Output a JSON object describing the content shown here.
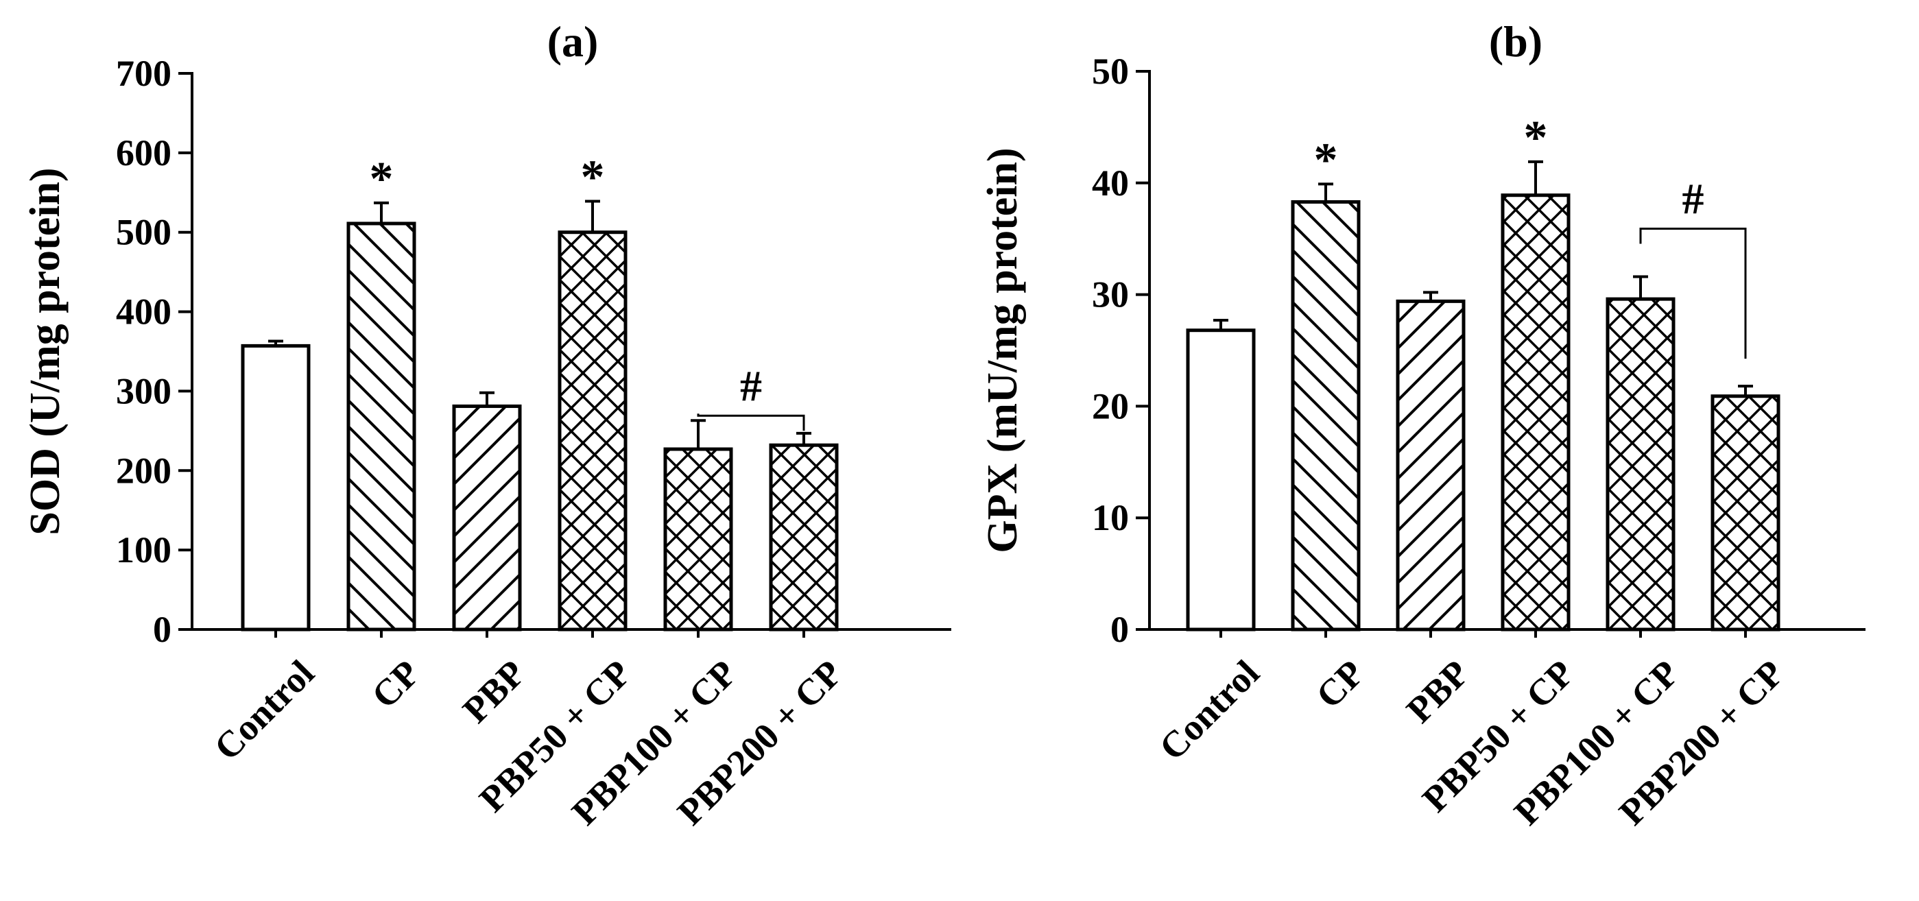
{
  "chart_data": [
    {
      "type": "bar",
      "title": "(a)",
      "xlabel": "",
      "ylabel": "SOD (U/mg protein)",
      "ylim": [
        0,
        700
      ],
      "yticks": [
        0,
        100,
        200,
        300,
        400,
        500,
        600,
        700
      ],
      "categories": [
        "Control",
        "CP",
        "PBP",
        "PBP50 + CP",
        "PBP100 + CP",
        "PBP200 + CP"
      ],
      "values": [
        357,
        511,
        281,
        500,
        227,
        232
      ],
      "errors": [
        6,
        26,
        17,
        39,
        36,
        15
      ],
      "patterns": [
        "none",
        "back",
        "forward",
        "cross",
        "cross",
        "cross"
      ],
      "markers": [
        "",
        "*",
        "",
        "*",
        "",
        ""
      ],
      "bracket": {
        "from": 4,
        "to": 5,
        "label": "#"
      }
    },
    {
      "type": "bar",
      "title": "(b)",
      "xlabel": "",
      "ylabel": "GPX (mU/mg protein)",
      "ylim": [
        0,
        50
      ],
      "yticks": [
        0,
        10,
        20,
        30,
        40,
        50
      ],
      "categories": [
        "Control",
        "CP",
        "PBP",
        "PBP50 + CP",
        "PBP100 + CP",
        "PBP200 + CP"
      ],
      "values": [
        26.8,
        38.3,
        29.4,
        38.9,
        29.6,
        20.9
      ],
      "errors": [
        0.9,
        1.6,
        0.8,
        3.0,
        2.0,
        0.9
      ],
      "patterns": [
        "none",
        "back",
        "forward",
        "cross",
        "cross",
        "cross"
      ],
      "markers": [
        "",
        "*",
        "",
        "*",
        "",
        ""
      ],
      "bracket": {
        "from": 4,
        "to": 5,
        "label": "#"
      }
    }
  ]
}
